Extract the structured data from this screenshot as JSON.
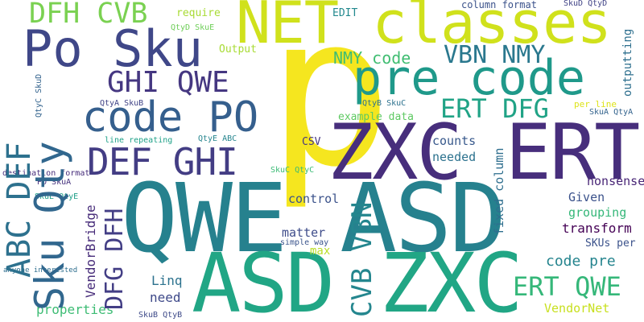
{
  "words": [
    {
      "text": "p",
      "color": "#f5e61f"
    },
    {
      "text": "QWE ASD",
      "color": "#26818e"
    },
    {
      "text": "ASD ZXC",
      "color": "#21a685"
    },
    {
      "text": "ZXC ERT",
      "color": "#472e7c"
    },
    {
      "text": "NET classes",
      "color": "#d0e11c"
    },
    {
      "text": "Po Sku",
      "color": "#3f4788"
    },
    {
      "text": "pre code",
      "color": "#1f998a"
    },
    {
      "text": "Sku Qty",
      "color": "#31678e"
    },
    {
      "text": "code PO",
      "color": "#355f8d"
    },
    {
      "text": "ABC DEF",
      "color": "#2d718e"
    },
    {
      "text": "DEF GHI",
      "color": "#433d84"
    },
    {
      "text": "GHI QWE",
      "color": "#453781"
    },
    {
      "text": "DFH CVB",
      "color": "#7ad151"
    },
    {
      "text": "DFG DFH",
      "color": "#433e85"
    },
    {
      "text": "ERT DFG",
      "color": "#20a386"
    },
    {
      "text": "ERT QWE",
      "color": "#35b779"
    },
    {
      "text": "CVB VBN",
      "color": "#24868e"
    },
    {
      "text": "VBN NMY",
      "color": "#2a788e"
    },
    {
      "text": "NMY code",
      "color": "#40bd72"
    },
    {
      "text": "code pre",
      "color": "#25848e"
    },
    {
      "text": "VendorBridge",
      "color": "#472c7a"
    },
    {
      "text": "properties",
      "color": "#3dbc74"
    },
    {
      "text": "Linq",
      "color": "#2c728e"
    },
    {
      "text": "need",
      "color": "#3e4989"
    },
    {
      "text": "transform",
      "color": "#440154"
    },
    {
      "text": "VendorNet",
      "color": "#c8e020"
    },
    {
      "text": "grouping",
      "color": "#35b779"
    },
    {
      "text": "Given",
      "color": "#3b528b"
    },
    {
      "text": "nonsense",
      "color": "#482576"
    },
    {
      "text": "needed",
      "color": "#2c728e"
    },
    {
      "text": "counts",
      "color": "#38598c"
    },
    {
      "text": "control",
      "color": "#3b528b"
    },
    {
      "text": "matter",
      "color": "#3e4c8a"
    },
    {
      "text": "max",
      "color": "#bade28"
    },
    {
      "text": "fixed column",
      "color": "#2e6e8e"
    },
    {
      "text": "SKUs per",
      "color": "#3b528b"
    },
    {
      "text": "example data",
      "color": "#5ec962"
    },
    {
      "text": "require",
      "color": "#a8db34"
    },
    {
      "text": "EDIT",
      "color": "#23898e"
    },
    {
      "text": "Output",
      "color": "#a8db34"
    },
    {
      "text": "column format",
      "color": "#3b528b"
    },
    {
      "text": "outputting",
      "color": "#2e6f8e"
    },
    {
      "text": "per line",
      "color": "#dde318"
    },
    {
      "text": "CSV",
      "color": "#453781"
    },
    {
      "text": "SkuD QtyD",
      "color": "#414487"
    },
    {
      "text": "QtyD SkuE",
      "color": "#6ece58"
    },
    {
      "text": "QtyA SkuB",
      "color": "#414487"
    },
    {
      "text": "QtyB SkuC",
      "color": "#2c718e"
    },
    {
      "text": "SkuA QtyA",
      "color": "#33638d"
    },
    {
      "text": "QtyE ABC",
      "color": "#25858e"
    },
    {
      "text": "SkuC QtyC",
      "color": "#3bbb75"
    },
    {
      "text": "line repeating",
      "color": "#1fa188"
    },
    {
      "text": "destination format",
      "color": "#472d7b"
    },
    {
      "text": "PO SkuA",
      "color": "#46327e"
    },
    {
      "text": "SkuE QtyE",
      "color": "#1f9f88"
    },
    {
      "text": "simple way",
      "color": "#3a548c"
    },
    {
      "text": "anyone interested",
      "color": "#2e6e8e"
    },
    {
      "text": "SkuB QtyB",
      "color": "#3e4a89"
    },
    {
      "text": "QtyC SkuD",
      "color": "#33638d"
    }
  ]
}
